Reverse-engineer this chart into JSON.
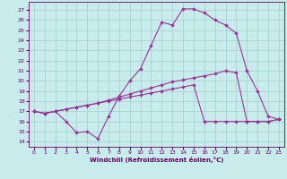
{
  "xlabel": "Windchill (Refroidissement éolien,°C)",
  "bg_color": "#c8ecec",
  "grid_color": "#a8d4d4",
  "line_color": "#993399",
  "tick_color": "#660066",
  "xlim": [
    -0.5,
    23.5
  ],
  "ylim": [
    13.5,
    27.8
  ],
  "yticks": [
    14,
    15,
    16,
    17,
    18,
    19,
    20,
    21,
    22,
    23,
    24,
    25,
    26,
    27
  ],
  "xticks": [
    0,
    1,
    2,
    3,
    4,
    5,
    6,
    7,
    8,
    9,
    10,
    11,
    12,
    13,
    14,
    15,
    16,
    17,
    18,
    19,
    20,
    21,
    22,
    23
  ],
  "line1_x": [
    0,
    1,
    2,
    3,
    4,
    5,
    6,
    7,
    8,
    9,
    10,
    11,
    12,
    13,
    14,
    15,
    16,
    17,
    18,
    19,
    20,
    21,
    22,
    23
  ],
  "line1_y": [
    17.0,
    16.8,
    17.0,
    16.0,
    14.9,
    15.0,
    14.3,
    16.5,
    18.5,
    20.0,
    21.2,
    23.5,
    25.8,
    25.5,
    27.1,
    27.1,
    26.7,
    26.0,
    25.5,
    24.7,
    21.0,
    19.0,
    16.5,
    16.2
  ],
  "line2_x": [
    0,
    1,
    2,
    3,
    4,
    5,
    6,
    7,
    8,
    9,
    10,
    11,
    12,
    13,
    14,
    15,
    16,
    17,
    18,
    19,
    20,
    21,
    22,
    23
  ],
  "line2_y": [
    17.0,
    16.8,
    17.0,
    17.2,
    17.4,
    17.6,
    17.8,
    18.1,
    18.4,
    18.7,
    19.0,
    19.3,
    19.6,
    19.9,
    20.1,
    20.3,
    20.5,
    20.7,
    21.0,
    20.8,
    16.0,
    16.0,
    16.0,
    16.2
  ],
  "line3_x": [
    0,
    1,
    2,
    3,
    4,
    5,
    6,
    7,
    8,
    9,
    10,
    11,
    12,
    13,
    14,
    15,
    16,
    17,
    18,
    19,
    20,
    21,
    22,
    23
  ],
  "line3_y": [
    17.0,
    16.8,
    17.0,
    17.2,
    17.4,
    17.6,
    17.8,
    18.0,
    18.2,
    18.4,
    18.6,
    18.8,
    19.0,
    19.2,
    19.4,
    19.6,
    16.0,
    16.0,
    16.0,
    16.0,
    16.0,
    16.0,
    16.0,
    16.2
  ],
  "marker_size": 2.0,
  "lw": 0.8,
  "tick_fontsize": 4.5,
  "xlabel_fontsize": 5.0
}
